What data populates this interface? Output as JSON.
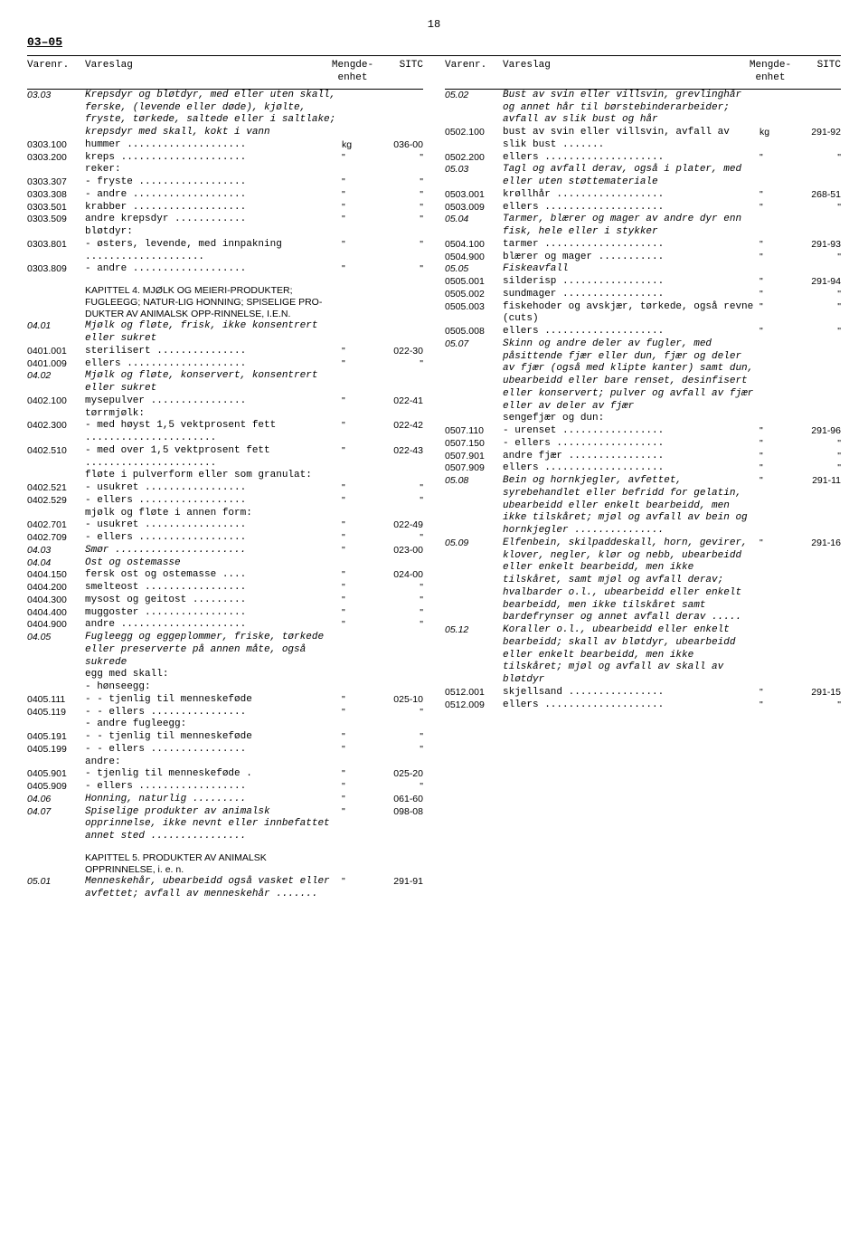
{
  "page_number": "18",
  "section_label": "03–05",
  "headers": {
    "varenr": "Varenr.",
    "vareslag": "Vareslag",
    "mengde": "Mengde-\nenhet",
    "sitc": "SITC"
  },
  "left": [
    {
      "v": "03.03",
      "t": "Krepsdyr og bløtdyr, med eller uten skall, ferske, (levende eller døde), kjølte, fryste, tørkede, saltede eller i saltlake; krepsdyr med skall, kokt i vann",
      "it": true
    },
    {
      "v": "0303.100",
      "t": "hummer ....................",
      "m": "kg",
      "s": "036-00"
    },
    {
      "v": "0303.200",
      "t": "kreps .....................",
      "m": "\"",
      "s": "\""
    },
    {
      "v": "",
      "t": "reker:"
    },
    {
      "v": "0303.307",
      "t": "- fryste ..................",
      "m": "\"",
      "s": "\""
    },
    {
      "v": "0303.308",
      "t": "- andre ...................",
      "m": "\"",
      "s": "\""
    },
    {
      "v": "0303.501",
      "t": "krabber ...................",
      "m": "\"",
      "s": "\""
    },
    {
      "v": "0303.509",
      "t": "andre krepsdyr ............",
      "m": "\"",
      "s": "\""
    },
    {
      "v": "",
      "t": "bløtdyr:"
    },
    {
      "v": "0303.801",
      "t": "- østers, levende, med innpakning ....................",
      "m": "\"",
      "s": "\""
    },
    {
      "v": "0303.809",
      "t": "- andre ...................",
      "m": "\"",
      "s": "\""
    },
    {
      "spacer": true
    },
    {
      "v": "",
      "t": "KAPITTEL 4. MJØLK OG MEIERI-PRODUKTER; FUGLEEGG; NATUR-LIG HONNING; SPISELIGE PRO-DUKTER AV ANIMALSK OPP-RINNELSE, I.E.N.",
      "chapter": true
    },
    {
      "v": "04.01",
      "t": "Mjølk og fløte, frisk, ikke konsentrert eller sukret",
      "it": true
    },
    {
      "v": "0401.001",
      "t": "sterilisert ...............",
      "m": "\"",
      "s": "022-30"
    },
    {
      "v": "0401.009",
      "t": "ellers ....................",
      "m": "\"",
      "s": "\""
    },
    {
      "v": "04.02",
      "t": "Mjølk og fløte, konservert, konsentrert eller sukret",
      "it": true
    },
    {
      "v": "0402.100",
      "t": "mysepulver ................",
      "m": "\"",
      "s": "022-41"
    },
    {
      "v": "",
      "t": "tørrmjølk:"
    },
    {
      "v": "0402.300",
      "t": "- med høyst 1,5 vektprosent fett ......................",
      "m": "\"",
      "s": "022-42"
    },
    {
      "v": "0402.510",
      "t": "- med over 1,5 vektprosent fett ......................",
      "m": "\"",
      "s": "022-43"
    },
    {
      "v": "",
      "t": "fløte i pulverform eller som granulat:"
    },
    {
      "v": "0402.521",
      "t": "- usukret .................",
      "m": "\"",
      "s": "\""
    },
    {
      "v": "0402.529",
      "t": "- ellers ..................",
      "m": "\"",
      "s": "\""
    },
    {
      "v": "",
      "t": "mjølk og fløte i annen form:"
    },
    {
      "v": "0402.701",
      "t": "- usukret .................",
      "m": "\"",
      "s": "022-49"
    },
    {
      "v": "0402.709",
      "t": "- ellers ..................",
      "m": "\"",
      "s": "\""
    },
    {
      "v": "04.03",
      "t": "Smør ......................",
      "m": "\"",
      "s": "023-00",
      "it": true
    },
    {
      "v": "04.04",
      "t": "Ost og ostemasse",
      "it": true
    },
    {
      "v": "0404.150",
      "t": "fersk ost og ostemasse ....",
      "m": "\"",
      "s": "024-00"
    },
    {
      "v": "0404.200",
      "t": "smelteost .................",
      "m": "\"",
      "s": "\""
    },
    {
      "v": "0404.300",
      "t": "mysost og geitost .........",
      "m": "\"",
      "s": "\""
    },
    {
      "v": "0404.400",
      "t": "muggoster .................",
      "m": "\"",
      "s": "\""
    },
    {
      "v": "0404.900",
      "t": "andre .....................",
      "m": "\"",
      "s": "\""
    },
    {
      "v": "04.05",
      "t": "Fugleegg og eggeplommer, friske, tørkede eller preserverte på annen måte, også sukrede",
      "it": true
    },
    {
      "v": "",
      "t": "egg med skall:"
    },
    {
      "v": "",
      "t": "- hønseegg:"
    },
    {
      "v": "0405.111",
      "t": "- - tjenlig til menneskeføde",
      "m": "\"",
      "s": "025-10"
    },
    {
      "v": "0405.119",
      "t": "- - ellers ................",
      "m": "\"",
      "s": "\""
    },
    {
      "v": "",
      "t": "- andre fugleegg:"
    },
    {
      "v": "0405.191",
      "t": "- - tjenlig til menneskeføde",
      "m": "\"",
      "s": "\""
    },
    {
      "v": "0405.199",
      "t": "- - ellers ................",
      "m": "\"",
      "s": "\""
    },
    {
      "v": "",
      "t": "andre:"
    },
    {
      "v": "0405.901",
      "t": "- tjenlig til menneskeføde .",
      "m": "\"",
      "s": "025-20"
    },
    {
      "v": "0405.909",
      "t": "- ellers ..................",
      "m": "\"",
      "s": "\""
    },
    {
      "v": "04.06",
      "t": "Honning, naturlig .........",
      "m": "\"",
      "s": "061-60",
      "it": true
    },
    {
      "v": "04.07",
      "t": "Spiselige produkter av animalsk opprinnelse, ikke nevnt eller innbefattet annet sted ................",
      "m": "\"",
      "s": "098-08",
      "it": true
    },
    {
      "spacer": true
    },
    {
      "v": "",
      "t": "KAPITTEL 5. PRODUKTER AV ANIMALSK OPPRINNELSE, i. e. n.",
      "chapter": true
    },
    {
      "v": "05.01",
      "t": "Menneskehår, ubearbeidd også vasket eller avfettet; avfall av menneskehår .......",
      "m": "\"",
      "s": "291-91",
      "it": true
    }
  ],
  "right": [
    {
      "v": "05.02",
      "t": "Bust av svin eller villsvin, grevlinghår og annet hår til børstebinderarbeider; avfall av slik bust og hår",
      "it": true
    },
    {
      "v": "0502.100",
      "t": "bust av svin eller villsvin, avfall av slik bust .......",
      "m": "kg",
      "s": "291-92"
    },
    {
      "v": "0502.200",
      "t": "ellers ....................",
      "m": "\"",
      "s": "\""
    },
    {
      "v": "05.03",
      "t": "Tagl og avfall derav, også i plater, med eller uten støttemateriale",
      "it": true
    },
    {
      "v": "0503.001",
      "t": "krøllhår ..................",
      "m": "\"",
      "s": "268-51"
    },
    {
      "v": "0503.009",
      "t": "ellers ....................",
      "m": "\"",
      "s": "\""
    },
    {
      "v": "05.04",
      "t": "Tarmer, blærer og mager av andre dyr enn fisk, hele eller i stykker",
      "it": true
    },
    {
      "v": "0504.100",
      "t": "tarmer ....................",
      "m": "\"",
      "s": "291-93"
    },
    {
      "v": "0504.900",
      "t": "blærer og mager ...........",
      "m": "\"",
      "s": "\""
    },
    {
      "v": "05.05",
      "t": "Fiskeavfall",
      "it": true
    },
    {
      "v": "0505.001",
      "t": "silderisp .................",
      "m": "\"",
      "s": "291-94"
    },
    {
      "v": "0505.002",
      "t": "sundmager .................",
      "m": "\"",
      "s": "\""
    },
    {
      "v": "0505.003",
      "t": "fiskehoder og avskjær, tørkede, også revne (cuts)",
      "m": "\"",
      "s": "\""
    },
    {
      "v": "0505.008",
      "t": "ellers ....................",
      "m": "\"",
      "s": "\""
    },
    {
      "v": "05.07",
      "t": "Skinn og andre deler av fugler, med påsittende fjær eller dun, fjær og deler av fjær (også med klipte kanter) samt dun, ubearbeidd eller bare renset, desinfisert eller konservert; pulver og avfall av fjær eller av deler av fjær",
      "it": true
    },
    {
      "v": "",
      "t": "sengefjær og dun:"
    },
    {
      "v": "0507.110",
      "t": "- urenset .................",
      "m": "\"",
      "s": "291-96"
    },
    {
      "v": "0507.150",
      "t": "- ellers ..................",
      "m": "\"",
      "s": "\""
    },
    {
      "v": "0507.901",
      "t": "andre fjær ................",
      "m": "\"",
      "s": "\""
    },
    {
      "v": "0507.909",
      "t": "ellers ....................",
      "m": "\"",
      "s": "\""
    },
    {
      "v": "05.08",
      "t": "Bein og hornkjegler, avfettet, syrebehandlet eller befridd for gelatin, ubearbeidd eller enkelt bearbeidd, men ikke tilskåret; mjøl og avfall av bein og hornkjegler ...............",
      "m": "\"",
      "s": "291-11",
      "it": true
    },
    {
      "v": "05.09",
      "t": "Elfenbein, skilpaddeskall, horn, gevirer, klover, negler, klør og nebb, ubearbeidd eller enkelt bearbeidd, men ikke tilskåret, samt mjøl og avfall derav; hvalbarder o.l., ubearbeidd eller enkelt bearbeidd, men ikke tilskåret samt bardefrynser og annet avfall derav .....",
      "m": "\"",
      "s": "291-16",
      "it": true
    },
    {
      "v": "05.12",
      "t": "Koraller o.l., ubearbeidd eller enkelt bearbeidd; skall av bløtdyr, ubearbeidd eller enkelt bearbeidd, men ikke tilskåret; mjøl og avfall av skall av bløtdyr",
      "it": true
    },
    {
      "v": "0512.001",
      "t": "skjellsand ................",
      "m": "\"",
      "s": "291-15"
    },
    {
      "v": "0512.009",
      "t": "ellers ....................",
      "m": "\"",
      "s": "\""
    }
  ]
}
